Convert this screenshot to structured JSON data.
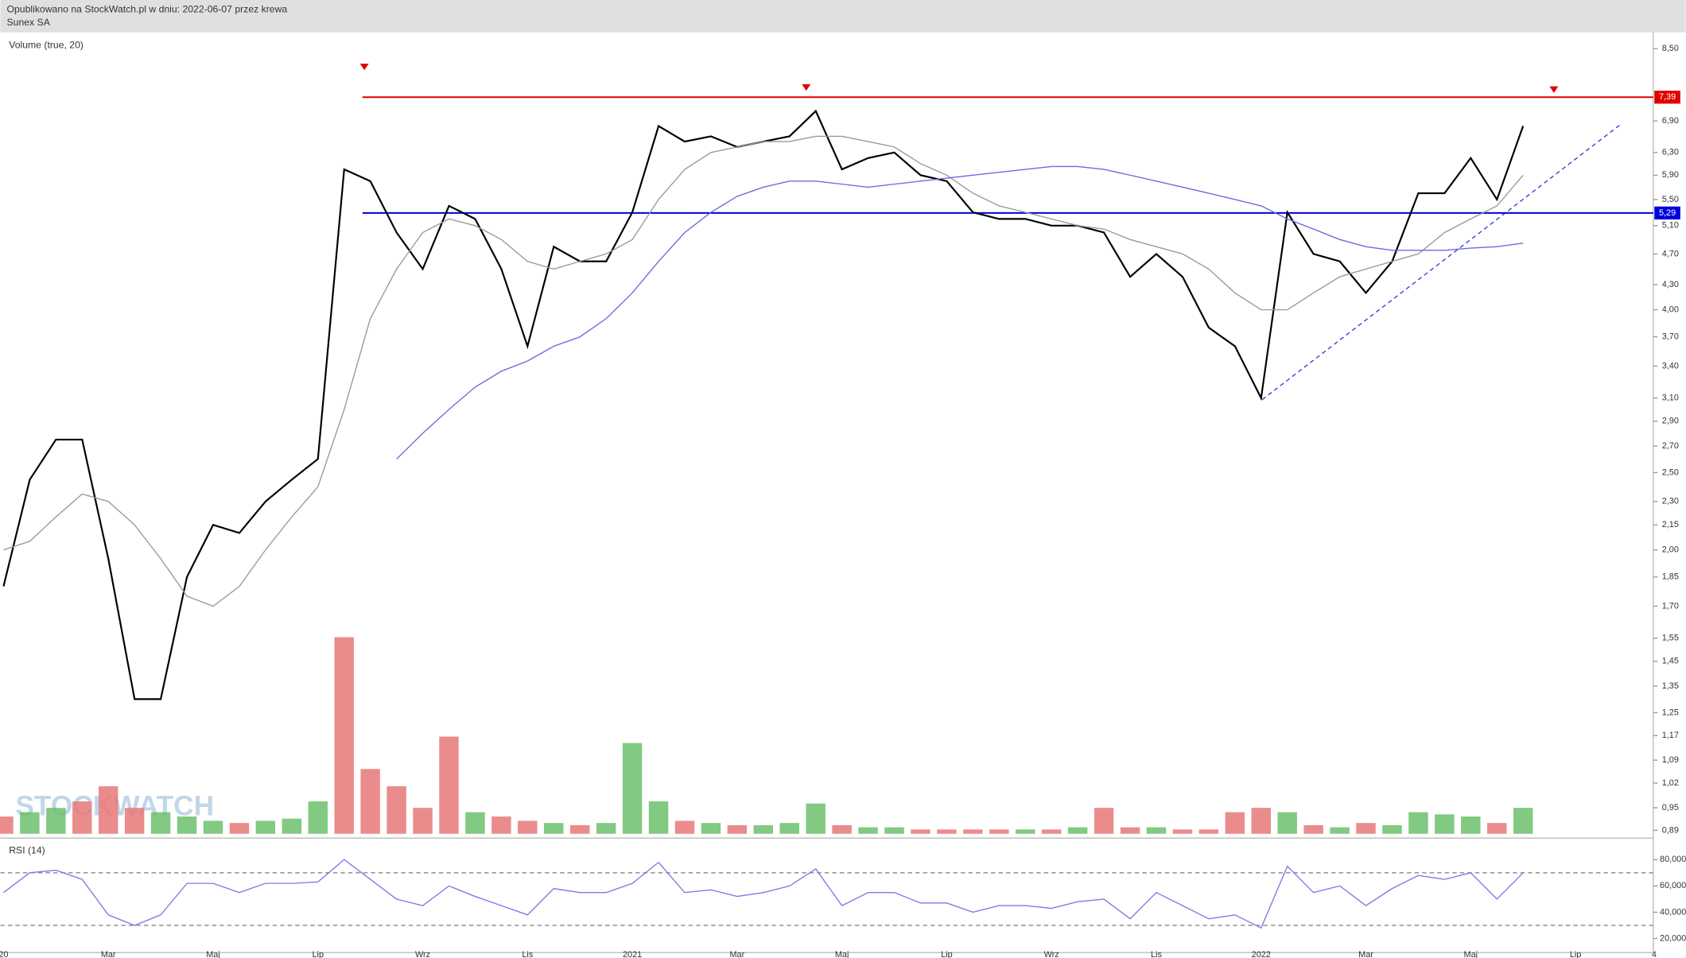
{
  "header": {
    "line1": "Opublikowano na StockWatch.pl w dniu: 2022-06-07 przez krewa",
    "line2": "Sunex SA"
  },
  "watermark": "STOCKWATCH",
  "chart_data": [
    {
      "type": "line",
      "title": "Volume (true, 20)",
      "log_scale": true,
      "categories": [
        "20",
        null,
        null,
        null,
        "Mar",
        null,
        null,
        null,
        "Maj",
        null,
        null,
        null,
        "Lip",
        null,
        null,
        null,
        "Wrz",
        null,
        null,
        null,
        "Lis",
        null,
        null,
        null,
        "2021",
        null,
        null,
        null,
        "Mar",
        null,
        null,
        null,
        "Maj",
        null,
        null,
        null,
        "Lip",
        null,
        null,
        null,
        "Wrz",
        null,
        null,
        null,
        "Lis",
        null,
        null,
        null,
        "2022",
        null,
        null,
        null,
        "Mar",
        null,
        null,
        null,
        "Maj",
        null,
        null,
        null,
        "Lip",
        null,
        null,
        "4"
      ],
      "series": [
        {
          "color": "#000000",
          "values": [
            1.8,
            2.45,
            2.75,
            2.75,
            1.95,
            1.3,
            1.3,
            1.85,
            2.15,
            2.1,
            2.3,
            2.45,
            2.6,
            6.0,
            5.8,
            5.0,
            4.5,
            5.4,
            5.2,
            4.5,
            3.6,
            4.8,
            4.6,
            4.6,
            5.3,
            6.8,
            6.5,
            6.6,
            6.4,
            6.5,
            6.6,
            7.1,
            6.0,
            6.2,
            6.3,
            5.9,
            5.8,
            5.3,
            5.2,
            5.2,
            5.1,
            5.1,
            5.0,
            4.4,
            4.7,
            4.4,
            3.8,
            3.6,
            3.1,
            5.3,
            4.7,
            4.6,
            4.2,
            4.6,
            5.6,
            5.6,
            6.2,
            5.5,
            6.8,
            null,
            null,
            null,
            null,
            null
          ]
        },
        {
          "color": "#999999",
          "values": [
            2.0,
            2.05,
            2.2,
            2.35,
            2.3,
            2.15,
            1.95,
            1.75,
            1.7,
            1.8,
            2.0,
            2.2,
            2.4,
            3.0,
            3.9,
            4.5,
            5.0,
            5.2,
            5.1,
            4.9,
            4.6,
            4.5,
            4.6,
            4.7,
            4.9,
            5.5,
            6.0,
            6.3,
            6.4,
            6.5,
            6.5,
            6.6,
            6.6,
            6.5,
            6.4,
            6.1,
            5.9,
            5.6,
            5.4,
            5.3,
            5.2,
            5.1,
            5.05,
            4.9,
            4.8,
            4.7,
            4.5,
            4.2,
            4.0,
            4.0,
            4.2,
            4.4,
            4.5,
            4.6,
            4.7,
            5.0,
            5.2,
            5.4,
            5.9,
            null,
            null,
            null,
            null,
            null
          ]
        },
        {
          "color": "#6a6ae0",
          "values": [
            null,
            null,
            null,
            null,
            null,
            null,
            null,
            null,
            null,
            null,
            null,
            null,
            null,
            null,
            null,
            2.6,
            2.8,
            3.0,
            3.2,
            3.35,
            3.45,
            3.6,
            3.7,
            3.9,
            4.2,
            4.6,
            5.0,
            5.3,
            5.55,
            5.7,
            5.8,
            5.8,
            5.75,
            5.7,
            5.75,
            5.8,
            5.85,
            5.9,
            5.95,
            6.0,
            6.05,
            6.05,
            6.0,
            5.9,
            5.8,
            5.7,
            5.6,
            5.5,
            5.4,
            5.2,
            5.05,
            4.9,
            4.8,
            4.75,
            4.75,
            4.75,
            4.78,
            4.8,
            4.85,
            null,
            null,
            null,
            null,
            null
          ]
        }
      ],
      "levels": [
        {
          "value": 7.39,
          "label": "7,39",
          "color": "#e00000"
        },
        {
          "value": 5.29,
          "label": "5,29",
          "color": "#0000dd"
        }
      ],
      "ylim": [
        0.873,
        8.91
      ],
      "yticks": [
        {
          "value": 8.5,
          "label": "8,50"
        },
        {
          "value": 6.9,
          "label": "6,90"
        },
        {
          "value": 6.3,
          "label": "6,30"
        },
        {
          "value": 5.9,
          "label": "5,90"
        },
        {
          "value": 5.5,
          "label": "5,50"
        },
        {
          "value": 5.1,
          "label": "5,10"
        },
        {
          "value": 4.7,
          "label": "4,70"
        },
        {
          "value": 4.3,
          "label": "4,30"
        },
        {
          "value": 4.0,
          "label": "4,00"
        },
        {
          "value": 3.7,
          "label": "3,70"
        },
        {
          "value": 3.4,
          "label": "3,40"
        },
        {
          "value": 3.1,
          "label": "3,10"
        },
        {
          "value": 2.9,
          "label": "2,90"
        },
        {
          "value": 2.7,
          "label": "2,70"
        },
        {
          "value": 2.5,
          "label": "2,50"
        },
        {
          "value": 2.3,
          "label": "2,30"
        },
        {
          "value": 2.15,
          "label": "2,15"
        },
        {
          "value": 2.0,
          "label": "2,00"
        },
        {
          "value": 1.85,
          "label": "1,85"
        },
        {
          "value": 1.7,
          "label": "1,70"
        },
        {
          "value": 1.55,
          "label": "1,55"
        },
        {
          "value": 1.45,
          "label": "1,45"
        },
        {
          "value": 1.35,
          "label": "1,35"
        },
        {
          "value": 1.25,
          "label": "1,25"
        },
        {
          "value": 1.17,
          "label": "1,17"
        },
        {
          "value": 1.09,
          "label": "1,09"
        },
        {
          "value": 1.02,
          "label": "1,02"
        },
        {
          "value": 0.95,
          "label": "0,95"
        },
        {
          "value": 0.89,
          "label": "0,89"
        }
      ]
    },
    {
      "type": "bar",
      "ylim": [
        0,
        100
      ],
      "values": [
        8,
        10,
        12,
        15,
        22,
        12,
        10,
        8,
        6,
        5,
        6,
        7,
        15,
        91,
        30,
        22,
        12,
        45,
        10,
        8,
        6,
        5,
        4,
        5,
        42,
        15,
        6,
        5,
        4,
        4,
        5,
        14,
        4,
        3,
        3,
        2,
        2,
        2,
        2,
        2,
        2,
        3,
        12,
        3,
        3,
        2,
        2,
        10,
        12,
        10,
        4,
        3,
        5,
        4,
        10,
        9,
        8,
        5,
        12
      ],
      "colors": [
        "#e87878",
        "#6cbf6c",
        "#6cbf6c",
        "#e87878",
        "#e87878",
        "#e87878",
        "#6cbf6c",
        "#6cbf6c",
        "#6cbf6c",
        "#e87878",
        "#6cbf6c",
        "#6cbf6c",
        "#6cbf6c",
        "#e87878",
        "#e87878",
        "#e87878",
        "#e87878",
        "#e87878",
        "#6cbf6c",
        "#e87878",
        "#e87878",
        "#6cbf6c",
        "#e87878",
        "#6cbf6c",
        "#6cbf6c",
        "#6cbf6c",
        "#e87878",
        "#6cbf6c",
        "#e87878",
        "#6cbf6c",
        "#6cbf6c",
        "#6cbf6c",
        "#e87878",
        "#6cbf6c",
        "#6cbf6c",
        "#e87878",
        "#e87878",
        "#e87878",
        "#e87878",
        "#6cbf6c",
        "#e87878",
        "#6cbf6c",
        "#e87878",
        "#e87878",
        "#6cbf6c",
        "#e87878",
        "#e87878",
        "#e87878",
        "#e87878",
        "#6cbf6c",
        "#e87878",
        "#6cbf6c",
        "#e87878",
        "#6cbf6c",
        "#6cbf6c",
        "#6cbf6c",
        "#6cbf6c",
        "#e87878",
        "#6cbf6c"
      ]
    },
    {
      "type": "line",
      "title": "RSI (14)",
      "color": "#7a7ae6",
      "values": [
        55,
        70,
        72,
        65,
        38,
        30,
        38,
        62,
        62,
        55,
        62,
        62,
        63,
        80,
        65,
        50,
        45,
        60,
        52,
        45,
        38,
        58,
        55,
        55,
        62,
        78,
        55,
        57,
        52,
        55,
        60,
        73,
        45,
        55,
        55,
        47,
        47,
        40,
        45,
        45,
        43,
        48,
        50,
        35,
        55,
        45,
        35,
        38,
        28,
        75,
        55,
        60,
        45,
        58,
        68,
        65,
        70,
        50,
        70
      ],
      "levels": [
        70,
        30
      ],
      "ylim": [
        9.3,
        93.1
      ],
      "yticks": [
        {
          "value": 80,
          "label": "80,0000"
        },
        {
          "value": 60,
          "label": "60,0000"
        },
        {
          "value": 40,
          "label": "40,0000"
        },
        {
          "value": 20,
          "label": "20,0000"
        }
      ]
    }
  ]
}
